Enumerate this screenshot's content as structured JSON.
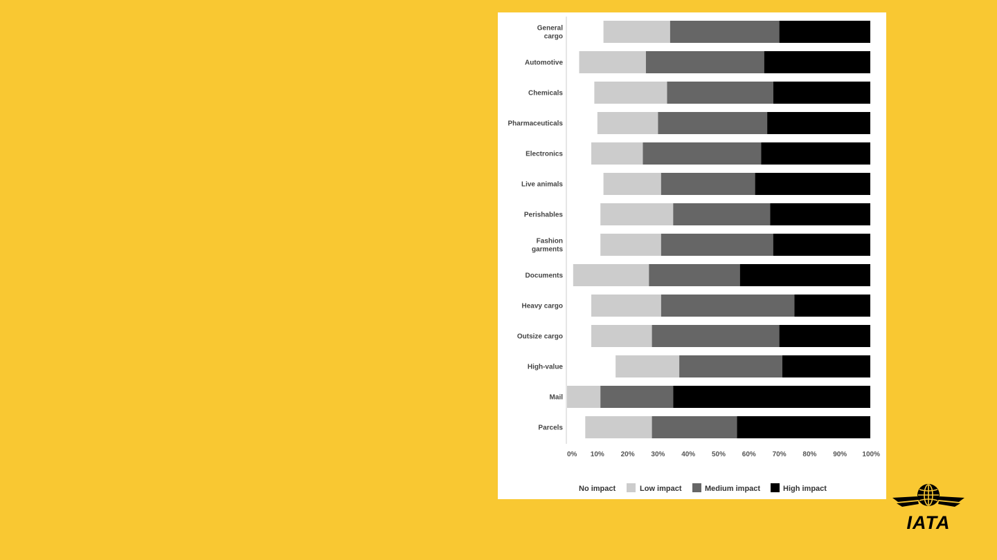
{
  "chart_data": {
    "type": "bar",
    "orientation": "horizontal",
    "stacked": true,
    "categories": [
      "General cargo",
      "Automotive",
      "Chemicals",
      "Pharmaceuticals",
      "Electronics",
      "Live animals",
      "Perishables",
      "Fashion garments",
      "Documents",
      "Heavy cargo",
      "Outsize cargo",
      "High-value",
      "Mail",
      "Parcels"
    ],
    "category_lines": [
      [
        "General",
        "cargo"
      ],
      [
        "Automotive"
      ],
      [
        "Chemicals"
      ],
      [
        "Pharmaceuticals"
      ],
      [
        "Electronics"
      ],
      [
        "Live animals"
      ],
      [
        "Perishables"
      ],
      [
        "Fashion",
        "garments"
      ],
      [
        "Documents"
      ],
      [
        "Heavy cargo"
      ],
      [
        "Outsize cargo"
      ],
      [
        "High-value"
      ],
      [
        "Mail"
      ],
      [
        "Parcels"
      ]
    ],
    "series": [
      {
        "name": "No impact",
        "color": "#FFFFFF",
        "values": [
          12,
          4,
          9,
          10,
          8,
          12,
          11,
          11,
          2,
          8,
          8,
          16,
          0,
          6
        ]
      },
      {
        "name": "Low impact",
        "color": "#CCCCCC",
        "values": [
          22,
          22,
          24,
          20,
          17,
          19,
          24,
          20,
          25,
          23,
          20,
          21,
          11,
          22
        ]
      },
      {
        "name": "Medium impact",
        "color": "#666666",
        "values": [
          36,
          39,
          35,
          36,
          39,
          31,
          32,
          37,
          30,
          44,
          42,
          34,
          24,
          28
        ]
      },
      {
        "name": "High impact",
        "color": "#000000",
        "values": [
          30,
          35,
          32,
          34,
          36,
          38,
          33,
          32,
          43,
          25,
          30,
          29,
          65,
          44
        ]
      }
    ],
    "x_ticks": [
      "0%",
      "10%",
      "20%",
      "30%",
      "40%",
      "50%",
      "60%",
      "70%",
      "80%",
      "90%",
      "100%"
    ],
    "xlim": [
      0,
      100
    ],
    "unit": "%",
    "grid": false,
    "legend_position": "bottom"
  },
  "logo": {
    "text": "IATA",
    "color": "#000000"
  }
}
